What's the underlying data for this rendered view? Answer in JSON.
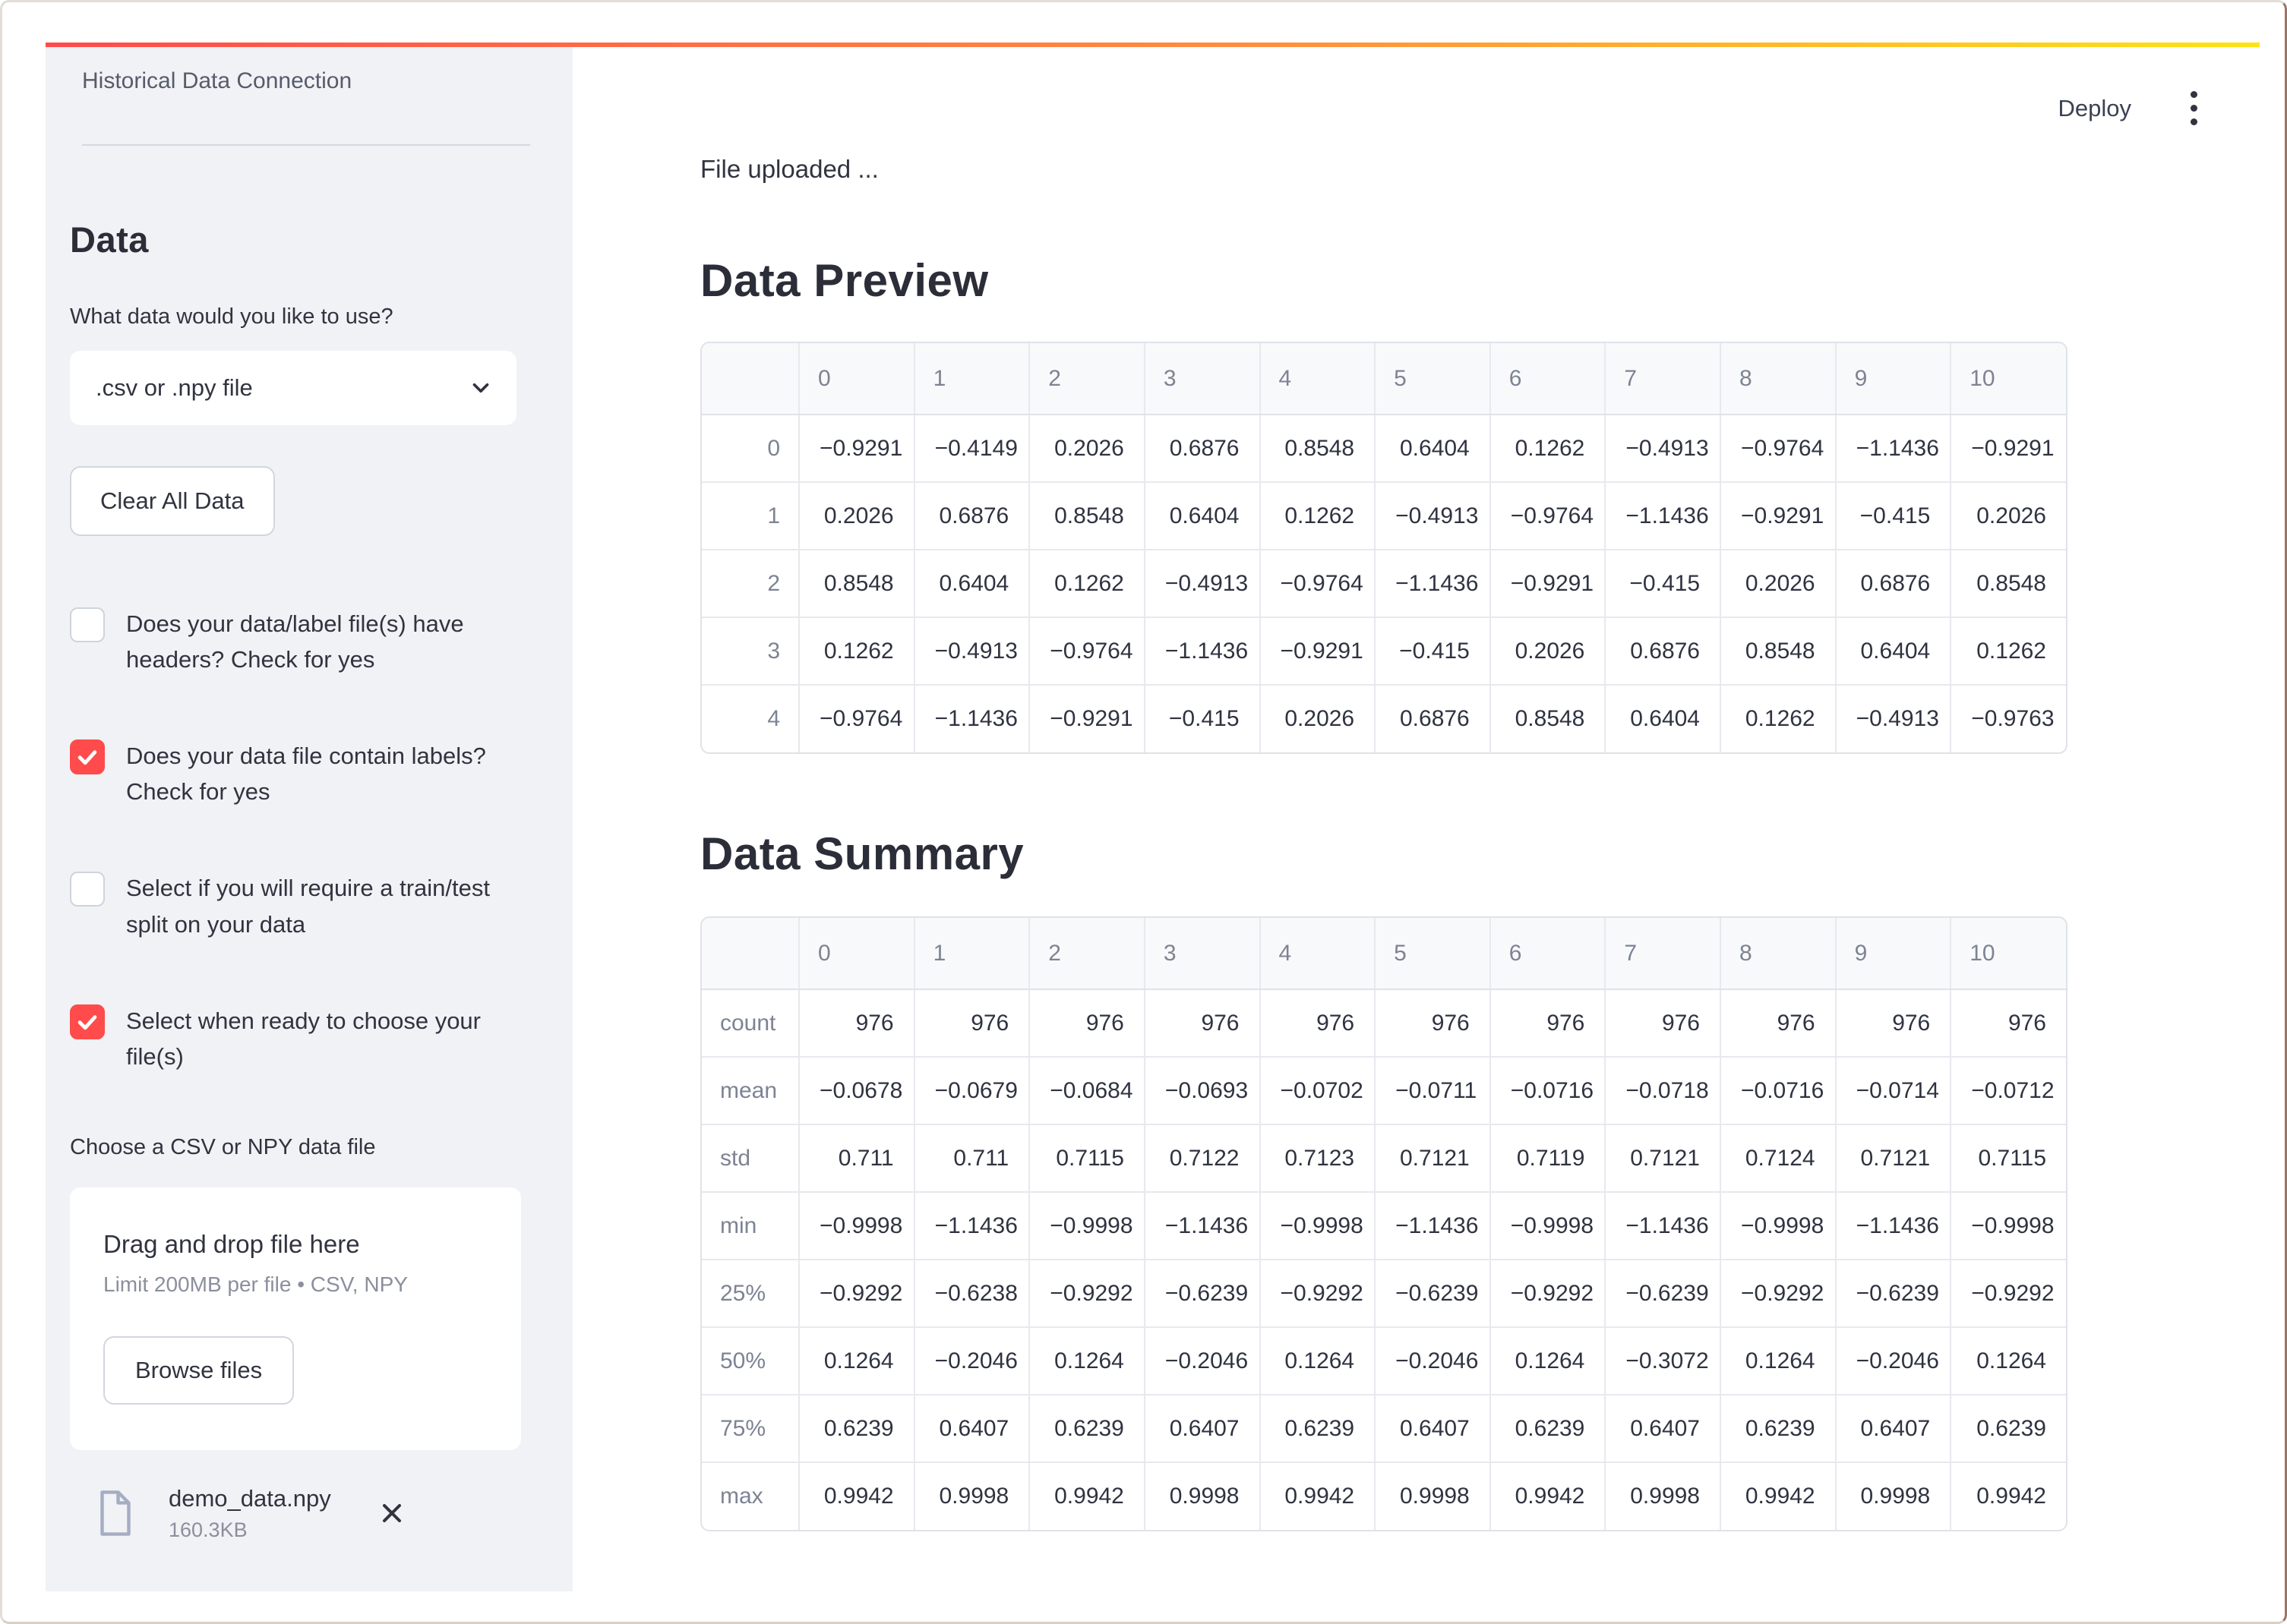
{
  "colors": {
    "accent": "#ff4b4b",
    "decoration_gradient": [
      "#ff4b4b",
      "#ff8e3f",
      "#ffe312"
    ],
    "sidebar_background": "#f0f2f6"
  },
  "header": {
    "deploy_label": "Deploy"
  },
  "sidebar": {
    "title": "Historical Data Connection",
    "section_heading": "Data",
    "select_label": "What data would you like to use?",
    "select_value": ".csv or .npy file",
    "clear_button": "Clear All Data",
    "checkboxes": [
      {
        "label": "Does your data/label file(s) have headers? Check for yes",
        "checked": false
      },
      {
        "label": "Does your data file contain labels? Check for yes",
        "checked": true
      },
      {
        "label": "Select if you will require a train/test split on your data",
        "checked": false
      },
      {
        "label": "Select when ready to choose your file(s)",
        "checked": true
      }
    ],
    "uploader": {
      "label": "Choose a CSV or NPY data file",
      "drag_text": "Drag and drop file here",
      "limit_text": "Limit 200MB per file • CSV, NPY",
      "browse_button": "Browse files",
      "file": {
        "name": "demo_data.npy",
        "size": "160.3KB"
      }
    }
  },
  "main": {
    "status_text": "File uploaded ...",
    "preview": {
      "title": "Data Preview",
      "table": {
        "index_align": "right",
        "columns": [
          "0",
          "1",
          "2",
          "3",
          "4",
          "5",
          "6",
          "7",
          "8",
          "9",
          "10"
        ],
        "index": [
          "0",
          "1",
          "2",
          "3",
          "4"
        ],
        "rows": [
          [
            "−0.9291",
            "−0.4149",
            "0.2026",
            "0.6876",
            "0.8548",
            "0.6404",
            "0.1262",
            "−0.4913",
            "−0.9764",
            "−1.1436",
            "−0.9291"
          ],
          [
            "0.2026",
            "0.6876",
            "0.8548",
            "0.6404",
            "0.1262",
            "−0.4913",
            "−0.9764",
            "−1.1436",
            "−0.9291",
            "−0.415",
            "0.2026"
          ],
          [
            "0.8548",
            "0.6404",
            "0.1262",
            "−0.4913",
            "−0.9764",
            "−1.1436",
            "−0.9291",
            "−0.415",
            "0.2026",
            "0.6876",
            "0.8548"
          ],
          [
            "0.1262",
            "−0.4913",
            "−0.9764",
            "−1.1436",
            "−0.9291",
            "−0.415",
            "0.2026",
            "0.6876",
            "0.8548",
            "0.6404",
            "0.1262"
          ],
          [
            "−0.9764",
            "−1.1436",
            "−0.9291",
            "−0.415",
            "0.2026",
            "0.6876",
            "0.8548",
            "0.6404",
            "0.1262",
            "−0.4913",
            "−0.9763"
          ]
        ]
      }
    },
    "summary": {
      "title": "Data Summary",
      "table": {
        "index_align": "left",
        "columns": [
          "0",
          "1",
          "2",
          "3",
          "4",
          "5",
          "6",
          "7",
          "8",
          "9",
          "10"
        ],
        "index": [
          "count",
          "mean",
          "std",
          "min",
          "25%",
          "50%",
          "75%",
          "max"
        ],
        "rows": [
          [
            "976",
            "976",
            "976",
            "976",
            "976",
            "976",
            "976",
            "976",
            "976",
            "976",
            "976"
          ],
          [
            "−0.0678",
            "−0.0679",
            "−0.0684",
            "−0.0693",
            "−0.0702",
            "−0.0711",
            "−0.0716",
            "−0.0718",
            "−0.0716",
            "−0.0714",
            "−0.0712"
          ],
          [
            "0.711",
            "0.711",
            "0.7115",
            "0.7122",
            "0.7123",
            "0.7121",
            "0.7119",
            "0.7121",
            "0.7124",
            "0.7121",
            "0.7115"
          ],
          [
            "−0.9998",
            "−1.1436",
            "−0.9998",
            "−1.1436",
            "−0.9998",
            "−1.1436",
            "−0.9998",
            "−1.1436",
            "−0.9998",
            "−1.1436",
            "−0.9998"
          ],
          [
            "−0.9292",
            "−0.6238",
            "−0.9292",
            "−0.6239",
            "−0.9292",
            "−0.6239",
            "−0.9292",
            "−0.6239",
            "−0.9292",
            "−0.6239",
            "−0.9292"
          ],
          [
            "0.1264",
            "−0.2046",
            "0.1264",
            "−0.2046",
            "0.1264",
            "−0.2046",
            "0.1264",
            "−0.3072",
            "0.1264",
            "−0.2046",
            "0.1264"
          ],
          [
            "0.6239",
            "0.6407",
            "0.6239",
            "0.6407",
            "0.6239",
            "0.6407",
            "0.6239",
            "0.6407",
            "0.6239",
            "0.6407",
            "0.6239"
          ],
          [
            "0.9942",
            "0.9998",
            "0.9942",
            "0.9998",
            "0.9942",
            "0.9998",
            "0.9942",
            "0.9998",
            "0.9942",
            "0.9998",
            "0.9942"
          ]
        ]
      }
    }
  }
}
